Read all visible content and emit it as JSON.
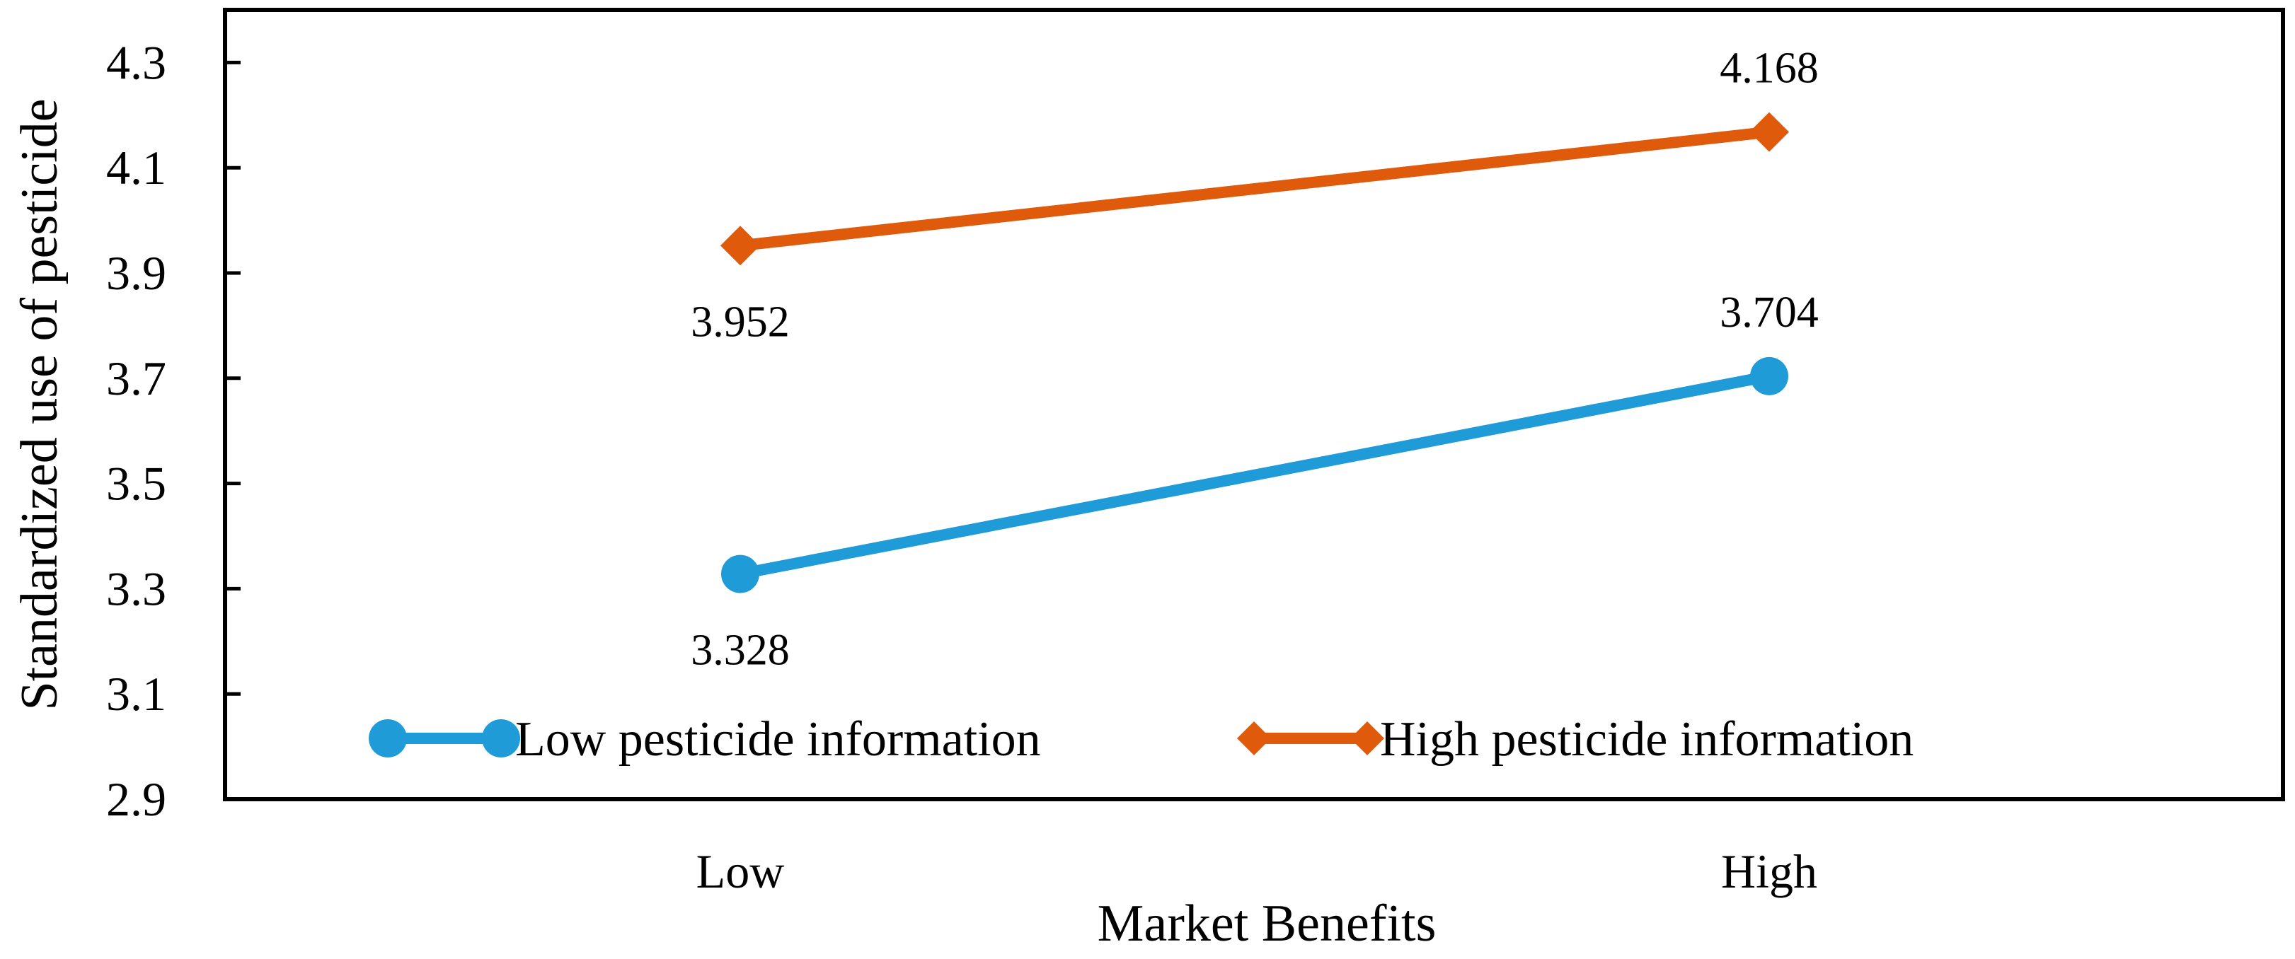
{
  "chart_data": {
    "type": "line",
    "title": "",
    "xlabel": "Market Benefits",
    "ylabel": "Standardized use of pesticide",
    "categories": [
      "Low",
      "High"
    ],
    "ylim": [
      2.9,
      4.4
    ],
    "yticks": [
      "2.9",
      "3.1",
      "3.3",
      "3.5",
      "3.7",
      "3.9",
      "4.1",
      "4.3"
    ],
    "grid": false,
    "legend_position": "bottom-inside",
    "series": [
      {
        "name": "Low pesticide information",
        "values": [
          3.328,
          3.704
        ],
        "labels": [
          "3.328",
          "3.704"
        ],
        "color": "#1F9BD7",
        "marker": "circle"
      },
      {
        "name": "High pesticide information",
        "values": [
          3.952,
          4.168
        ],
        "labels": [
          "3.952",
          "4.168"
        ],
        "color": "#E05A0C",
        "marker": "diamond"
      }
    ]
  }
}
